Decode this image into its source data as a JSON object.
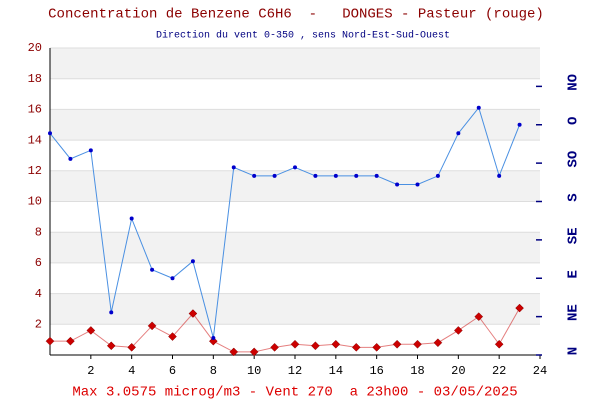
{
  "chart_data": {
    "type": "line",
    "title": "Concentration de Benzene C6H6  -   DONGES - Pasteur (rouge)",
    "subtitle": "Direction du vent 0-350 , sens Nord-Est-Sud-Ouest",
    "footer": "Max 3.0575 microg/m3 - Vent 270  a 23h00 - 03/05/2025",
    "x": [
      0,
      1,
      2,
      3,
      4,
      5,
      6,
      7,
      8,
      9,
      10,
      11,
      12,
      13,
      14,
      15,
      16,
      17,
      18,
      19,
      20,
      21,
      22,
      23
    ],
    "xlim": [
      0,
      24
    ],
    "xticks": [
      2,
      4,
      6,
      8,
      10,
      12,
      14,
      16,
      18,
      20,
      22,
      24
    ],
    "ylim": [
      0,
      20
    ],
    "yticks": [
      2,
      4,
      6,
      8,
      10,
      12,
      14,
      16,
      18,
      20
    ],
    "y2lim": [
      0,
      360
    ],
    "y2ticks": [
      {
        "value": 0,
        "label": "N"
      },
      {
        "value": 45,
        "label": "NE"
      },
      {
        "value": 90,
        "label": "E"
      },
      {
        "value": 135,
        "label": "SE"
      },
      {
        "value": 180,
        "label": "S"
      },
      {
        "value": 225,
        "label": "SO"
      },
      {
        "value": 270,
        "label": "O"
      },
      {
        "value": 315,
        "label": "NO"
      }
    ],
    "grid": true,
    "series": [
      {
        "name": "Benzene",
        "color": "#cc0000",
        "marker": "diamond",
        "values": [
          0.9,
          0.9,
          1.6,
          0.6,
          0.5,
          1.9,
          1.2,
          2.7,
          0.9,
          0.2,
          0.2,
          0.5,
          0.7,
          0.6,
          0.7,
          0.5,
          0.5,
          0.7,
          0.7,
          0.8,
          1.6,
          2.5,
          0.7,
          3.0575
        ]
      },
      {
        "name": "Vent",
        "color": "#4a90e2",
        "marker": "dot",
        "axis": "y2",
        "values": [
          260,
          230,
          240,
          50,
          160,
          100,
          90,
          110,
          20,
          220,
          210,
          210,
          220,
          210,
          210,
          210,
          210,
          200,
          200,
          210,
          260,
          290,
          210,
          270
        ]
      }
    ]
  }
}
